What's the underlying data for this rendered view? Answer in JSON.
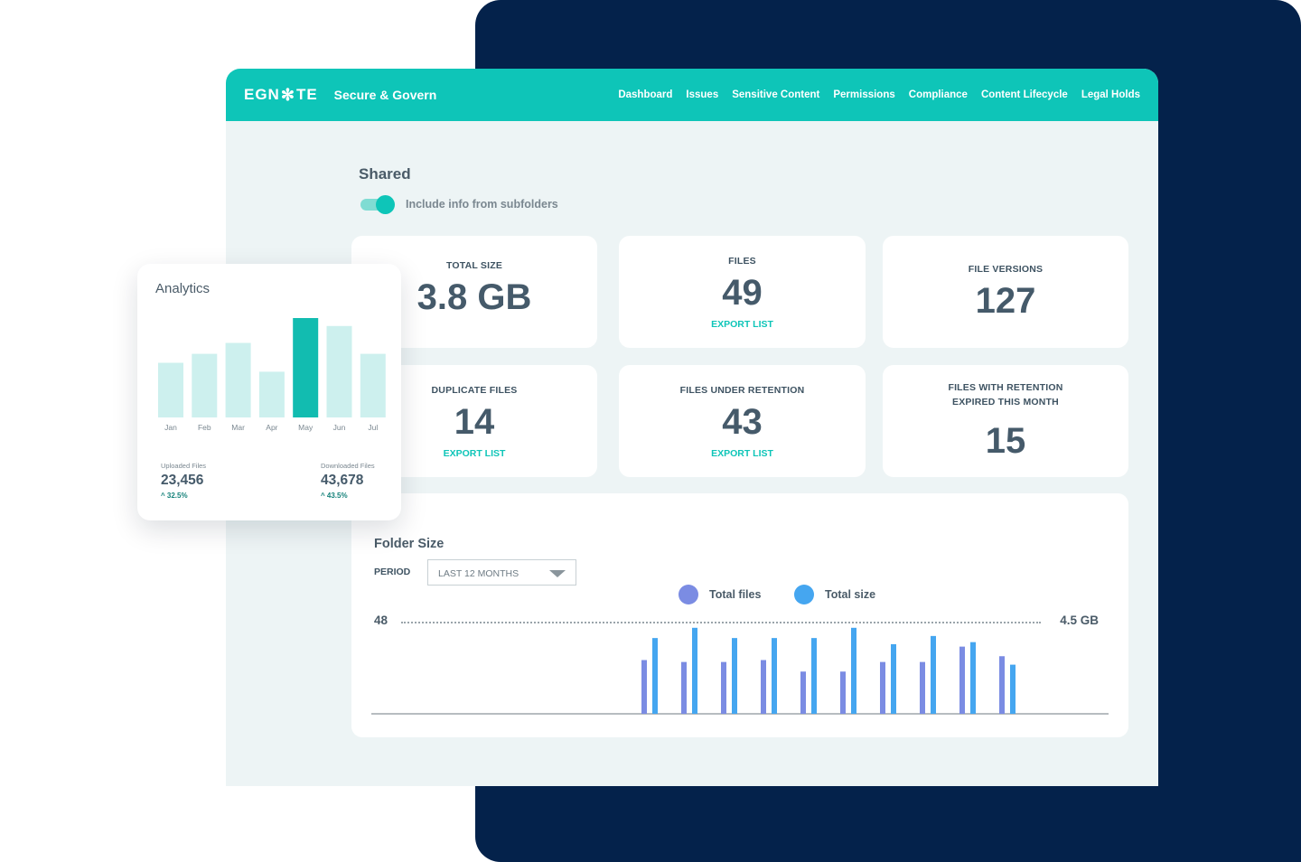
{
  "app": {
    "brand": {
      "logo_left": "EGN",
      "logo_right": "TE",
      "title": "Secure & Govern"
    },
    "nav": [
      "Dashboard",
      "Issues",
      "Sensitive Content",
      "Permissions",
      "Compliance",
      "Content Lifecycle",
      "Legal Holds"
    ],
    "colors": {
      "accent": "#0ec5b8",
      "navy": "#04224b",
      "files_series": "#7b8ce3",
      "size_series": "#45a6f0"
    }
  },
  "section": {
    "title": "Shared",
    "toggle_label": "Include info from subfolders",
    "toggle_on": true
  },
  "cards": {
    "total_size": {
      "label": "TOTAL SIZE",
      "value": "3.8 GB"
    },
    "files": {
      "label": "FILES",
      "value": "49",
      "link": "EXPORT LIST"
    },
    "file_versions": {
      "label": "FILE VERSIONS",
      "value": "127"
    },
    "duplicate_files": {
      "label": "DUPLICATE FILES",
      "value": "14",
      "link": "EXPORT LIST"
    },
    "files_under_retention": {
      "label": "FILES UNDER RETENTION",
      "value": "43",
      "link": "EXPORT LIST"
    },
    "retention_expired": {
      "label_line1": "FILES WITH RETENTION",
      "label_line2": "EXPIRED THIS MONTH",
      "value": "15"
    }
  },
  "folder_size": {
    "title": "Folder Size",
    "period_label": "PERIOD",
    "period_value": "LAST 12 MONTHS",
    "legend_files": "Total files",
    "legend_size": "Total size",
    "left_axis_max": "48",
    "right_axis_max": "4.5 GB"
  },
  "analytics": {
    "title": "Analytics",
    "uploaded_label": "Uploaded Files",
    "uploaded_value": "23,456",
    "uploaded_change": "^ 32.5%",
    "downloaded_label": "Downloaded Files",
    "downloaded_value": "43,678",
    "downloaded_change": "^ 43.5%"
  },
  "chart_data": [
    {
      "type": "bar",
      "categories": [
        "Jan",
        "Feb",
        "Mar",
        "Apr",
        "May",
        "Jun",
        "Jul"
      ],
      "values": [
        55,
        64,
        75,
        46,
        100,
        92,
        64
      ],
      "highlight_index": 4,
      "colors": {
        "bar": "#cdf0ee",
        "highlight": "#12bcb0"
      },
      "ylim": [
        0,
        100
      ]
    },
    {
      "type": "bar",
      "series": [
        {
          "name": "Total files",
          "values": [
            28,
            27,
            27,
            28,
            22,
            22,
            27,
            27,
            35,
            30
          ],
          "color": "#7b8ce3",
          "axis": "left"
        },
        {
          "name": "Total size",
          "values": [
            3.7,
            4.2,
            3.7,
            3.7,
            3.7,
            4.2,
            3.4,
            3.8,
            3.5,
            2.4
          ],
          "color": "#45a6f0",
          "axis": "right"
        }
      ],
      "ylim_left": [
        0,
        48
      ],
      "ylim_right": [
        0,
        4.5
      ]
    }
  ]
}
